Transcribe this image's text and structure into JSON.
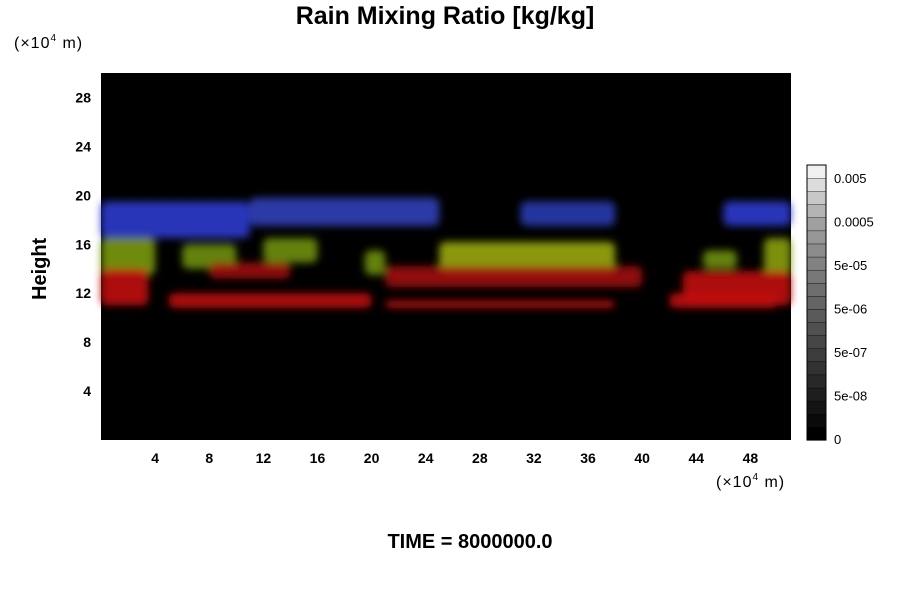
{
  "chart_data": {
    "type": "heatmap",
    "title": "Rain Mixing Ratio [kg/kg]",
    "ylabel": "Height",
    "x_unit": {
      "prefix": "(×10",
      "exp": "4",
      "suffix": " m)"
    },
    "y_unit": {
      "prefix": "(×10",
      "exp": "4",
      "suffix": " m)"
    },
    "xlim": [
      0,
      51
    ],
    "ylim": [
      0,
      30
    ],
    "x_ticks": [
      4,
      8,
      12,
      16,
      20,
      24,
      28,
      32,
      36,
      40,
      44,
      48
    ],
    "y_ticks": [
      4,
      8,
      12,
      16,
      20,
      24,
      28
    ],
    "colorbar": {
      "levels": 21,
      "tick_labels": [
        "0.005",
        "0.0005",
        "5e-05",
        "5e-06",
        "5e-07",
        "5e-08",
        "0"
      ],
      "colors": [
        "#000000",
        "#0a0a0a",
        "#141414",
        "#1e1e1e",
        "#282828",
        "#323232",
        "#3c3c3c",
        "#464646",
        "#505050",
        "#5a5a5a",
        "#646464",
        "#6e6e6e",
        "#787878",
        "#828282",
        "#8c8c8c",
        "#969696",
        "#a0a0a0",
        "#b4b4b4",
        "#c8c8c8",
        "#dcdcdc",
        "#f0f0f0"
      ]
    },
    "features": [
      {
        "color": "#2d3ccc",
        "x": [
          0,
          11
        ],
        "y": [
          16.5,
          19.5
        ]
      },
      {
        "color": "#3040b8",
        "x": [
          11,
          25
        ],
        "y": [
          17.5,
          19.8
        ]
      },
      {
        "color": "#283ab0",
        "x": [
          31,
          38
        ],
        "y": [
          17.5,
          19.5
        ]
      },
      {
        "color": "#2d3ccc",
        "x": [
          46,
          51
        ],
        "y": [
          17.5,
          19.5
        ]
      },
      {
        "color": "#7a9a10",
        "x": [
          0,
          4
        ],
        "y": [
          13.5,
          16.5
        ]
      },
      {
        "color": "#6f9010",
        "x": [
          6,
          10
        ],
        "y": [
          14,
          16
        ]
      },
      {
        "color": "#6f9010",
        "x": [
          12,
          16
        ],
        "y": [
          14.5,
          16.5
        ]
      },
      {
        "color": "#6f9010",
        "x": [
          19.5,
          21
        ],
        "y": [
          13.5,
          15.5
        ]
      },
      {
        "color": "#9aa810",
        "x": [
          25,
          38
        ],
        "y": [
          13.5,
          16.2
        ]
      },
      {
        "color": "#6f9010",
        "x": [
          44.5,
          47
        ],
        "y": [
          14,
          15.5
        ]
      },
      {
        "color": "#8aa010",
        "x": [
          49,
          51
        ],
        "y": [
          13.5,
          16.5
        ]
      },
      {
        "color": "#c01010",
        "x": [
          0,
          3.5
        ],
        "y": [
          11,
          14
        ]
      },
      {
        "color": "#a01010",
        "x": [
          8,
          14
        ],
        "y": [
          13.2,
          14.5
        ]
      },
      {
        "color": "#a01010",
        "x": [
          21,
          40
        ],
        "y": [
          12.5,
          14.2
        ]
      },
      {
        "color": "#c01010",
        "x": [
          43,
          51
        ],
        "y": [
          11,
          13.8
        ]
      },
      {
        "color": "#c01010",
        "x": [
          5,
          20
        ],
        "y": [
          10.8,
          12
        ]
      },
      {
        "color": "#c01010",
        "x": [
          21,
          38
        ],
        "y": [
          10.8,
          11.4
        ]
      },
      {
        "color": "#c01010",
        "x": [
          42,
          50
        ],
        "y": [
          10.8,
          12
        ]
      }
    ]
  },
  "footer": {
    "time_label": "TIME = 8000000.0"
  }
}
